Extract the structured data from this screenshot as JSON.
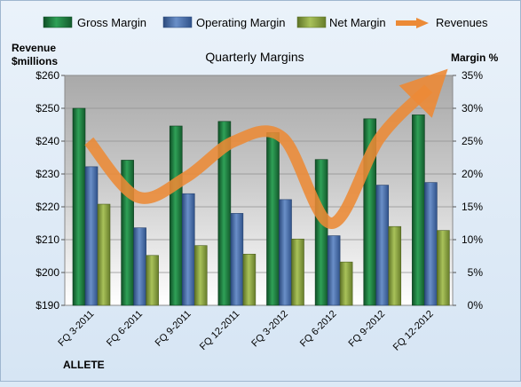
{
  "chart_data": {
    "type": "bar",
    "title": "Quarterly Margins",
    "categories": [
      "FQ 3-2011",
      "FQ 6-2011",
      "FQ 9-2011",
      "FQ 12-2011",
      "FQ 3-2012",
      "FQ 6-2012",
      "FQ 9-2012",
      "FQ 12-2012"
    ],
    "series": [
      {
        "name": "Gross Margin",
        "axis": "right",
        "unit": "%",
        "color": "#1e7a3e",
        "values": [
          30.0,
          22.1,
          27.3,
          28.0,
          26.3,
          22.2,
          28.4,
          29.0
        ]
      },
      {
        "name": "Operating Margin",
        "axis": "right",
        "unit": "%",
        "color": "#4a6ea9",
        "values": [
          21.1,
          11.8,
          17.0,
          14.0,
          16.1,
          10.6,
          18.3,
          18.7
        ]
      },
      {
        "name": "Net Margin",
        "axis": "right",
        "unit": "%",
        "color": "#8ca43f",
        "values": [
          15.4,
          7.6,
          9.1,
          7.8,
          10.1,
          6.6,
          12.0,
          11.4
        ]
      },
      {
        "name": "Revenues",
        "type": "line",
        "axis": "left",
        "unit": "$millions",
        "color": "#ec8a36",
        "values": [
          240,
          223,
          229,
          240,
          241,
          215,
          241,
          256
        ]
      }
    ],
    "y_left": {
      "label_line1": "Revenue",
      "label_line2": "$millions",
      "range": [
        190,
        260
      ],
      "ticks": [
        "$190",
        "$200",
        "$210",
        "$220",
        "$230",
        "$240",
        "$250",
        "$260"
      ]
    },
    "y_right": {
      "label": "Margin %",
      "range": [
        0,
        35
      ],
      "ticks": [
        "0%",
        "5%",
        "10%",
        "15%",
        "20%",
        "25%",
        "30%",
        "35%"
      ]
    },
    "grid": true,
    "legend_position": "top"
  },
  "footer": {
    "brand": "ALLETE"
  }
}
